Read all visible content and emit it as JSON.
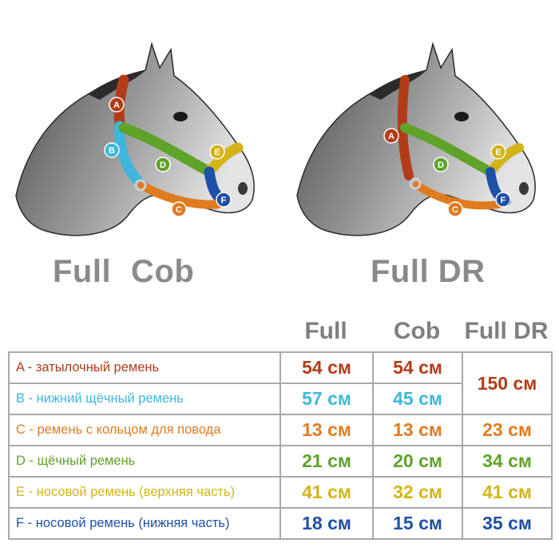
{
  "captions": {
    "left_a": "Full",
    "left_b": "Cob",
    "right": "Full DR"
  },
  "diagram_marks": [
    "A",
    "B",
    "C",
    "D",
    "E",
    "F"
  ],
  "columns": [
    "Full",
    "Cob",
    "Full DR"
  ],
  "colors": {
    "A": "#b33c18",
    "B": "#3fb6dd",
    "C": "#e07b20",
    "D": "#5fa32a",
    "E": "#d3b418",
    "F": "#1e50a8",
    "border": "#a9a9a9",
    "header_text": "#7f7f7f"
  },
  "rows": [
    {
      "key": "A",
      "label": "A - затылочный ремень",
      "full": "54 см",
      "cob": "54 см",
      "full_dr": "150 см"
    },
    {
      "key": "B",
      "label": "B - нижний щёчный ремень",
      "full": "57 см",
      "cob": "45 см"
    },
    {
      "key": "C",
      "label": "C - ремень с кольцом для повода",
      "full": "13 см",
      "cob": "13 см",
      "full_dr": "23 см"
    },
    {
      "key": "D",
      "label": "D - щёчный ремень",
      "full": "21 см",
      "cob": "20 см",
      "full_dr": "34 см"
    },
    {
      "key": "E",
      "label": "E - носовой ремень (верхняя часть)",
      "full": "41 см",
      "cob": "32 см",
      "full_dr": "41 см"
    },
    {
      "key": "F",
      "label": "F - носовой ремень (нижняя часть)",
      "full": "18 см",
      "cob": "15 см",
      "full_dr": "35 см"
    }
  ]
}
